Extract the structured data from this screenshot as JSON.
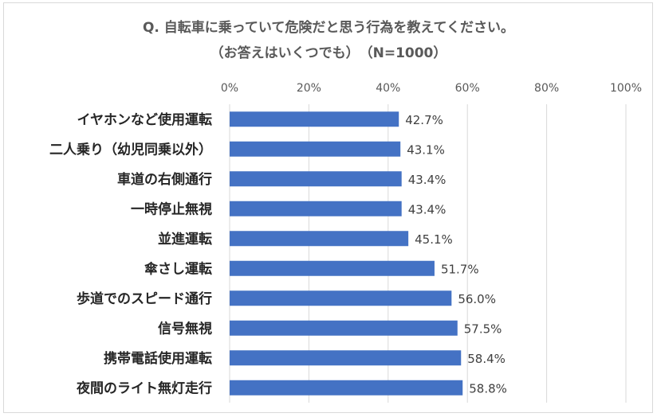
{
  "chart_data": {
    "type": "bar",
    "orientation": "horizontal",
    "title": "Q. 自転車に乗っていて危険だと思う行為を教えてください。",
    "subtitle": "（お答えはいくつでも）　（N=1000）",
    "xlabel": "",
    "ylabel": "",
    "xlim": [
      0,
      100
    ],
    "x_ticks": [
      "0%",
      "20%",
      "40%",
      "60%",
      "80%",
      "100%"
    ],
    "x_tick_values": [
      0,
      20,
      40,
      60,
      80,
      100
    ],
    "grid": true,
    "legend": "none",
    "bar_color": "#4472c4",
    "categories": [
      "イヤホンなど使用運転",
      "二人乗り（幼児同乗以外）",
      "車道の右側通行",
      "一時停止無視",
      "並進運転",
      "傘さし運転",
      "歩道でのスピード通行",
      "信号無視",
      "携帯電話使用運転",
      "夜間のライト無灯走行"
    ],
    "values": [
      42.7,
      43.1,
      43.4,
      43.4,
      45.1,
      51.7,
      56.0,
      57.5,
      58.4,
      58.8
    ],
    "data_labels": [
      "42.7%",
      "43.1%",
      "43.4%",
      "43.4%",
      "45.1%",
      "51.7%",
      "56.0%",
      "57.5%",
      "58.4%",
      "58.8%"
    ]
  }
}
